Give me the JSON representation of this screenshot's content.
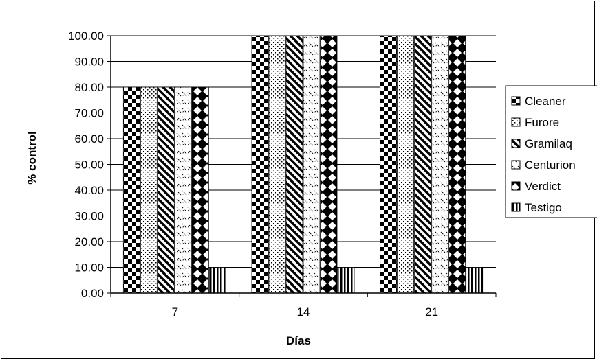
{
  "chart_data": {
    "type": "bar",
    "categories": [
      "7",
      "14",
      "21"
    ],
    "series": [
      {
        "name": "Cleaner",
        "values": [
          80,
          100,
          100
        ],
        "pattern": "checker"
      },
      {
        "name": "Furore",
        "values": [
          80,
          100,
          100
        ],
        "pattern": "dots"
      },
      {
        "name": "Gramilaq",
        "values": [
          80,
          100,
          100
        ],
        "pattern": "diagonal"
      },
      {
        "name": "Centurion",
        "values": [
          80,
          100,
          100
        ],
        "pattern": "chevron"
      },
      {
        "name": "Verdict",
        "values": [
          80,
          100,
          100
        ],
        "pattern": "diamond"
      },
      {
        "name": "Testigo",
        "values": [
          10,
          10,
          10
        ],
        "pattern": "vertical"
      }
    ],
    "xlabel": "Días",
    "ylabel": "% control",
    "ylim": [
      0,
      100
    ],
    "yticks": [
      "0.00",
      "10.00",
      "20.00",
      "30.00",
      "40.00",
      "50.00",
      "60.00",
      "70.00",
      "80.00",
      "90.00",
      "100.00"
    ],
    "ytick_values": [
      0,
      10,
      20,
      30,
      40,
      50,
      60,
      70,
      80,
      90,
      100
    ],
    "grid": true,
    "legend_position": "right",
    "colors": {
      "bar_stroke": "#000000",
      "grid": "#000000",
      "background": "#ffffff"
    }
  }
}
